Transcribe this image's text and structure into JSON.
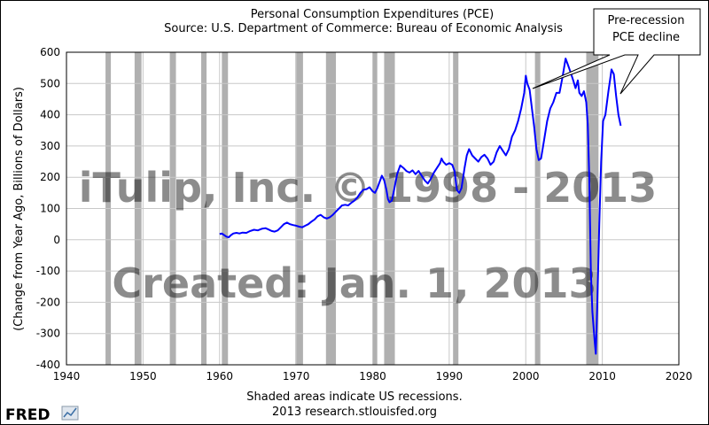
{
  "chart_data": {
    "type": "line",
    "title": "Personal Consumption Expenditures (PCE)",
    "subtitle": "Source: U.S. Department of Commerce: Bureau of Economic Analysis",
    "ylabel": "(Change from Year Ago, Billions of Dollars)",
    "xlabel": "Shaded areas indicate US recessions.",
    "footer": "2013 research.stlouisfed.org",
    "xlim": [
      1940,
      2020
    ],
    "ylim": [
      -400,
      600
    ],
    "xticks": [
      "1940",
      "1950",
      "1960",
      "1970",
      "1980",
      "1990",
      "2000",
      "2010",
      "2020"
    ],
    "yticks": [
      "600",
      "500",
      "400",
      "300",
      "200",
      "100",
      "0",
      "-100",
      "-200",
      "-300",
      "-400"
    ],
    "grid": true,
    "line_color": "#0000ff",
    "recession_color": "#b0b0b0",
    "recessions": [
      [
        1945.1,
        1945.8
      ],
      [
        1948.9,
        1949.8
      ],
      [
        1953.5,
        1954.3
      ],
      [
        1957.6,
        1958.3
      ],
      [
        1960.3,
        1961.1
      ],
      [
        1969.9,
        1970.9
      ],
      [
        1973.9,
        1975.2
      ],
      [
        1980.0,
        1980.6
      ],
      [
        1981.5,
        1982.9
      ],
      [
        1990.5,
        1991.2
      ],
      [
        2001.2,
        2001.9
      ],
      [
        2007.9,
        2009.5
      ]
    ],
    "watermark": [
      "iTulip, Inc. © 1998 - 2013",
      "Created: Jan. 1, 2013"
    ],
    "annotation": {
      "text": [
        "Pre-recession",
        "PCE decline"
      ]
    },
    "series": [
      {
        "values": [
          [
            1960.0,
            18
          ],
          [
            1960.3,
            20
          ],
          [
            1960.6,
            15
          ],
          [
            1960.9,
            10
          ],
          [
            1961.2,
            8
          ],
          [
            1961.5,
            15
          ],
          [
            1961.8,
            20
          ],
          [
            1962.2,
            22
          ],
          [
            1962.6,
            20
          ],
          [
            1963.0,
            23
          ],
          [
            1963.5,
            22
          ],
          [
            1964.0,
            28
          ],
          [
            1964.5,
            32
          ],
          [
            1965.0,
            30
          ],
          [
            1965.5,
            35
          ],
          [
            1966.0,
            37
          ],
          [
            1966.4,
            33
          ],
          [
            1966.8,
            28
          ],
          [
            1967.2,
            26
          ],
          [
            1967.6,
            30
          ],
          [
            1968.0,
            40
          ],
          [
            1968.4,
            50
          ],
          [
            1968.8,
            55
          ],
          [
            1969.2,
            50
          ],
          [
            1969.6,
            47
          ],
          [
            1970.0,
            45
          ],
          [
            1970.4,
            42
          ],
          [
            1970.8,
            40
          ],
          [
            1971.2,
            45
          ],
          [
            1971.6,
            50
          ],
          [
            1972.0,
            58
          ],
          [
            1972.4,
            65
          ],
          [
            1972.8,
            75
          ],
          [
            1973.2,
            80
          ],
          [
            1973.6,
            72
          ],
          [
            1974.0,
            68
          ],
          [
            1974.4,
            72
          ],
          [
            1974.8,
            80
          ],
          [
            1975.2,
            90
          ],
          [
            1975.6,
            100
          ],
          [
            1976.0,
            110
          ],
          [
            1976.4,
            112
          ],
          [
            1976.8,
            110
          ],
          [
            1977.2,
            118
          ],
          [
            1977.6,
            125
          ],
          [
            1978.0,
            135
          ],
          [
            1978.4,
            150
          ],
          [
            1978.8,
            160
          ],
          [
            1979.2,
            162
          ],
          [
            1979.6,
            168
          ],
          [
            1980.0,
            155
          ],
          [
            1980.3,
            150
          ],
          [
            1980.6,
            165
          ],
          [
            1980.9,
            185
          ],
          [
            1981.2,
            205
          ],
          [
            1981.5,
            190
          ],
          [
            1981.8,
            160
          ],
          [
            1982.0,
            130
          ],
          [
            1982.2,
            120
          ],
          [
            1982.5,
            125
          ],
          [
            1982.8,
            160
          ],
          [
            1983.2,
            210
          ],
          [
            1983.6,
            238
          ],
          [
            1984.0,
            230
          ],
          [
            1984.4,
            220
          ],
          [
            1984.8,
            215
          ],
          [
            1985.2,
            222
          ],
          [
            1985.6,
            210
          ],
          [
            1986.0,
            220
          ],
          [
            1986.4,
            205
          ],
          [
            1986.8,
            190
          ],
          [
            1987.2,
            180
          ],
          [
            1987.6,
            195
          ],
          [
            1988.0,
            215
          ],
          [
            1988.4,
            230
          ],
          [
            1988.8,
            245
          ],
          [
            1989.0,
            260
          ],
          [
            1989.2,
            250
          ],
          [
            1989.6,
            240
          ],
          [
            1990.0,
            245
          ],
          [
            1990.4,
            240
          ],
          [
            1990.7,
            220
          ],
          [
            1991.0,
            160
          ],
          [
            1991.3,
            150
          ],
          [
            1991.6,
            165
          ],
          [
            1992.0,
            230
          ],
          [
            1992.3,
            270
          ],
          [
            1992.6,
            290
          ],
          [
            1993.0,
            270
          ],
          [
            1993.4,
            260
          ],
          [
            1993.8,
            250
          ],
          [
            1994.2,
            265
          ],
          [
            1994.6,
            272
          ],
          [
            1995.0,
            260
          ],
          [
            1995.4,
            240
          ],
          [
            1995.8,
            250
          ],
          [
            1996.2,
            280
          ],
          [
            1996.6,
            300
          ],
          [
            1997.0,
            285
          ],
          [
            1997.4,
            270
          ],
          [
            1997.8,
            290
          ],
          [
            1998.2,
            330
          ],
          [
            1998.6,
            350
          ],
          [
            1999.0,
            380
          ],
          [
            1999.4,
            420
          ],
          [
            1999.8,
            470
          ],
          [
            2000.0,
            525
          ],
          [
            2000.2,
            500
          ],
          [
            2000.5,
            480
          ],
          [
            2000.8,
            420
          ],
          [
            2001.1,
            360
          ],
          [
            2001.4,
            290
          ],
          [
            2001.7,
            255
          ],
          [
            2002.0,
            260
          ],
          [
            2002.4,
            320
          ],
          [
            2002.8,
            380
          ],
          [
            2003.2,
            420
          ],
          [
            2003.6,
            440
          ],
          [
            2004.0,
            470
          ],
          [
            2004.4,
            470
          ],
          [
            2004.8,
            520
          ],
          [
            2005.2,
            580
          ],
          [
            2005.5,
            560
          ],
          [
            2005.8,
            540
          ],
          [
            2006.2,
            510
          ],
          [
            2006.5,
            485
          ],
          [
            2006.8,
            510
          ],
          [
            2007.0,
            470
          ],
          [
            2007.3,
            460
          ],
          [
            2007.6,
            475
          ],
          [
            2007.9,
            440
          ],
          [
            2008.1,
            370
          ],
          [
            2008.3,
            200
          ],
          [
            2008.5,
            -100
          ],
          [
            2008.7,
            -230
          ],
          [
            2009.0,
            -325
          ],
          [
            2009.15,
            -365
          ],
          [
            2009.35,
            -200
          ],
          [
            2009.6,
            50
          ],
          [
            2009.85,
            250
          ],
          [
            2010.1,
            380
          ],
          [
            2010.4,
            400
          ],
          [
            2010.8,
            475
          ],
          [
            2011.0,
            510
          ],
          [
            2011.2,
            545
          ],
          [
            2011.5,
            530
          ],
          [
            2011.8,
            460
          ],
          [
            2012.1,
            400
          ],
          [
            2012.4,
            365
          ]
        ]
      }
    ]
  },
  "brand": {
    "logo": "FRED"
  }
}
